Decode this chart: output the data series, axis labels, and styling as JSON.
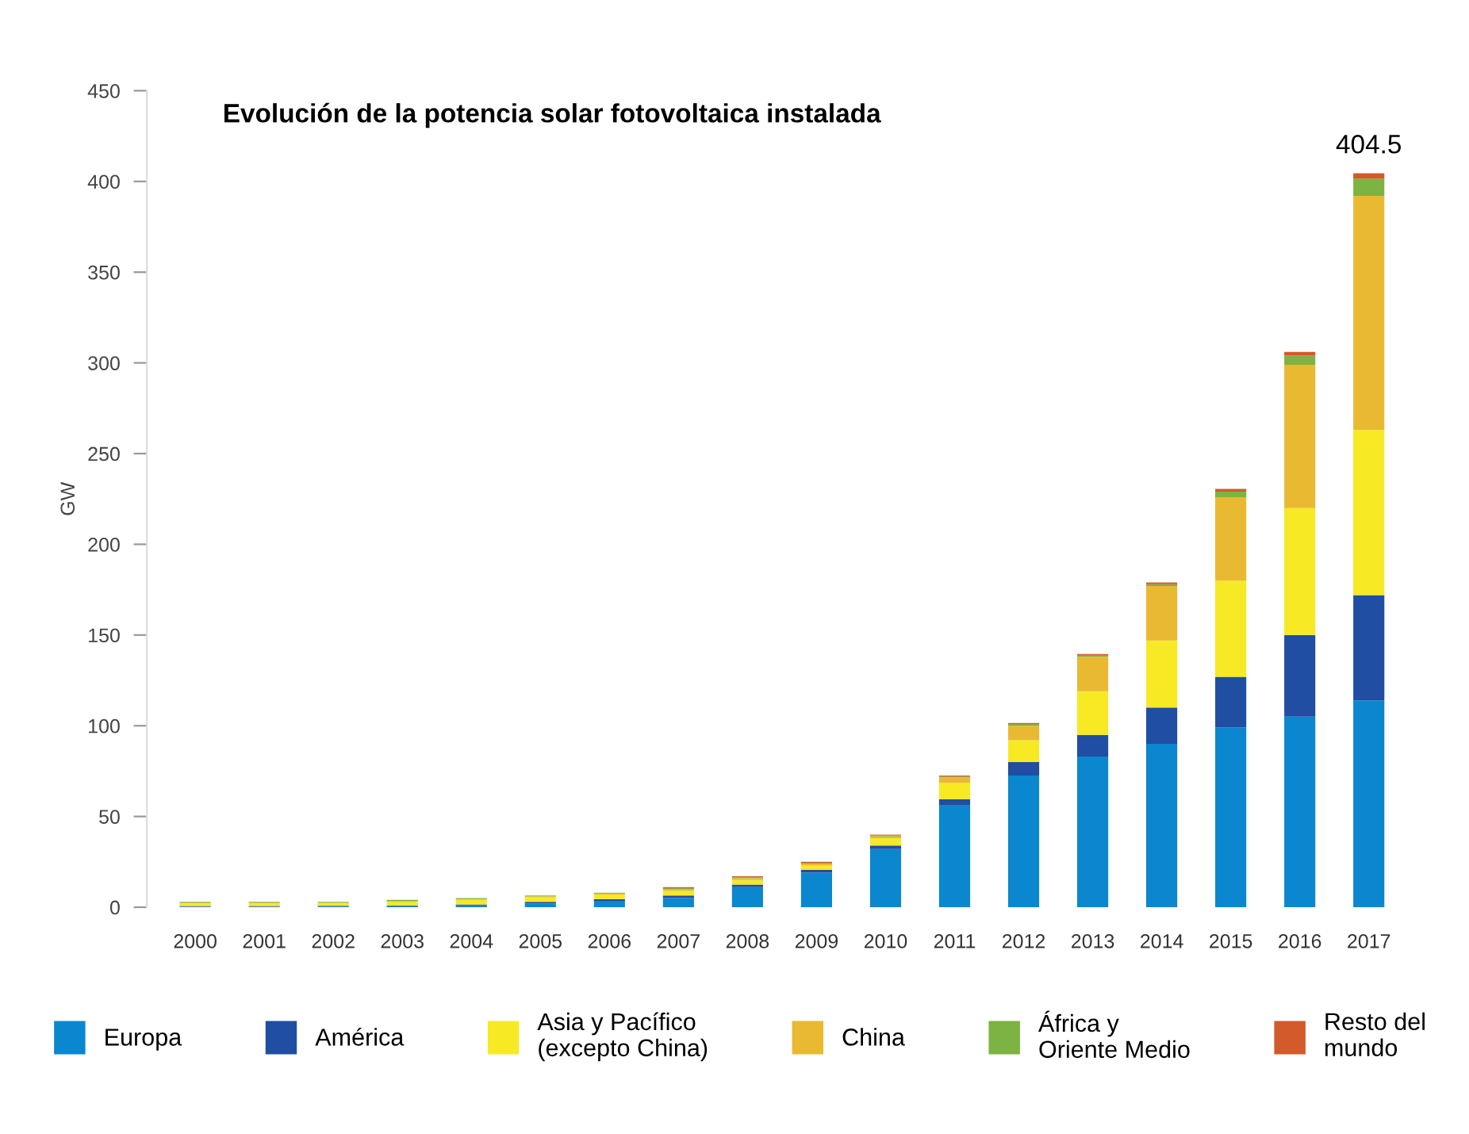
{
  "chart_data": {
    "type": "bar",
    "title": "Evolución de la potencia solar fotovoltaica instalada",
    "ylabel": "GW",
    "categories": [
      "2000",
      "2001",
      "2002",
      "2003",
      "2004",
      "2005",
      "2006",
      "2007",
      "2008",
      "2009",
      "2010",
      "2011",
      "2012",
      "2013",
      "2014",
      "2015",
      "2016",
      "2017"
    ],
    "stacked": true,
    "series": [
      {
        "name": "Europa",
        "color": "#0a87cf",
        "values": [
          0.2,
          0.2,
          0.3,
          0.5,
          1,
          2,
          3.5,
          5,
          11,
          19,
          32,
          56,
          72.5,
          83,
          90,
          99,
          105,
          114
        ]
      },
      {
        "name": "América",
        "color": "#1f4ea3",
        "values": [
          0.5,
          0.5,
          0.5,
          0.5,
          0.5,
          1,
          1,
          1.5,
          1.5,
          1.5,
          2,
          3.5,
          7.5,
          12,
          20,
          28,
          45,
          58
        ]
      },
      {
        "name": "Asia y Pacífico\n(excepto China)",
        "color": "#f7e924",
        "values": [
          1.5,
          1.5,
          1.5,
          2,
          2.5,
          2.5,
          2.5,
          2.5,
          2.5,
          2.5,
          4,
          9,
          12,
          24,
          37,
          53,
          70,
          91
        ]
      },
      {
        "name": "China",
        "color": "#eab932",
        "values": [
          0.3,
          0.3,
          0.2,
          0.5,
          0.5,
          0.5,
          0.5,
          1,
          1,
          1,
          1,
          3,
          8,
          19,
          30,
          46,
          79,
          129
        ]
      },
      {
        "name": "África y\nOriente Medio",
        "color": "#7cb342",
        "values": [
          0.5,
          0.5,
          0.5,
          0.5,
          0.5,
          0.5,
          0.5,
          0.5,
          0.5,
          0.5,
          0.5,
          0.5,
          1,
          1,
          1,
          3,
          5,
          9.5
        ]
      },
      {
        "name": "Resto del\nmundo",
        "color": "#d35a2a",
        "values": [
          0,
          0,
          0,
          0,
          0,
          0,
          0,
          0.5,
          0.5,
          0.5,
          0.5,
          0.5,
          0.5,
          0.5,
          1,
          1.5,
          2,
          3
        ]
      }
    ],
    "totals": [
      null,
      null,
      null,
      null,
      null,
      null,
      null,
      null,
      null,
      null,
      null,
      null,
      null,
      null,
      null,
      null,
      null,
      "404.5"
    ],
    "ylim": [
      0,
      450
    ],
    "yticks": [
      0,
      50,
      100,
      150,
      200,
      250,
      300,
      350,
      400,
      450
    ],
    "grid": false,
    "legend": "bottom"
  }
}
